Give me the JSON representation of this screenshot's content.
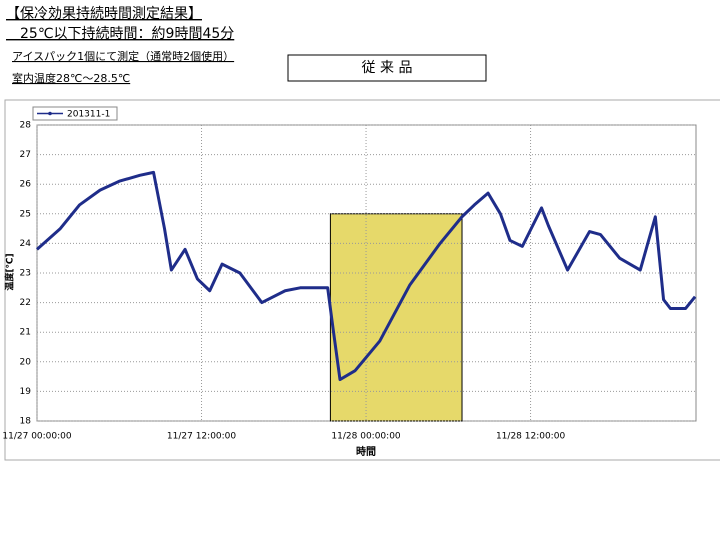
{
  "header": {
    "title": "【保冷効果持続時間測定結果】",
    "subtitle": "　25℃以下持続時間：約9時間45分",
    "notes": [
      "アイスパック1個にて測定（通常時2個使用）",
      "室内温度28℃～28.5℃"
    ],
    "product_label": "従 来 品"
  },
  "chart_data": {
    "type": "line",
    "x_label": "時間",
    "y_label": "温度[℃]",
    "grid": true,
    "legend": "top-left",
    "x": [
      "11/27 00:00:00",
      "11/27 01:42:00",
      "11/27 03:06:00",
      "11/27 04:36:00",
      "11/27 06:00:00",
      "11/27 07:30:00",
      "11/27 08:30:00",
      "11/27 09:18:00",
      "11/27 09:48:00",
      "11/27 10:48:00",
      "11/27 11:42:00",
      "11/27 12:36:00",
      "11/27 13:30:00",
      "11/27 14:48:00",
      "11/27 16:24:00",
      "11/27 18:06:00",
      "11/27 19:12:00",
      "11/27 21:12:00",
      "11/27 21:36:00",
      "11/27 22:06:00",
      "11/27 23:12:00",
      "11/28 01:00:00",
      "11/28 03:12:00",
      "11/28 05:24:00",
      "11/28 07:00:00",
      "11/28 07:54:00",
      "11/28 08:54:00",
      "11/28 09:48:00",
      "11/28 10:30:00",
      "11/28 11:24:00",
      "11/28 12:48:00",
      "11/28 13:18:00",
      "11/28 14:42:00",
      "11/28 16:18:00",
      "11/28 17:06:00",
      "11/28 18:30:00",
      "11/28 20:00:00",
      "11/28 21:06:00",
      "11/28 21:42:00",
      "11/28 22:12:00",
      "11/28 23:18:00",
      "11/29 00:00:00"
    ],
    "series": [
      {
        "name": "201311-1",
        "color": "#1f2d8a",
        "values": [
          23.8,
          24.5,
          25.3,
          25.8,
          26.1,
          26.3,
          26.4,
          24.5,
          23.1,
          23.8,
          22.8,
          22.4,
          23.3,
          23.0,
          22.0,
          22.4,
          22.5,
          22.5,
          21.1,
          19.4,
          19.7,
          20.7,
          22.6,
          24.0,
          24.9,
          25.3,
          25.7,
          25.0,
          24.1,
          23.9,
          25.2,
          24.6,
          23.1,
          24.4,
          24.3,
          23.5,
          23.1,
          24.9,
          22.1,
          21.8,
          21.8,
          22.2
        ]
      }
    ],
    "xlim": [
      "11/27 00:00:00",
      "11/29 00:04:00"
    ],
    "xticks": [
      "11/27 00:00:00",
      "11/27 12:00:00",
      "11/28 00:00:00",
      "11/28 12:00:00"
    ],
    "ylim": [
      18,
      28
    ],
    "yticks": [
      18,
      19,
      20,
      21,
      22,
      23,
      24,
      25,
      26,
      27,
      28
    ],
    "highlight": {
      "x": [
        "11/27 21:24:00",
        "11/28 07:00:00"
      ],
      "y": [
        18,
        25
      ],
      "color": "#e6d96a"
    }
  }
}
